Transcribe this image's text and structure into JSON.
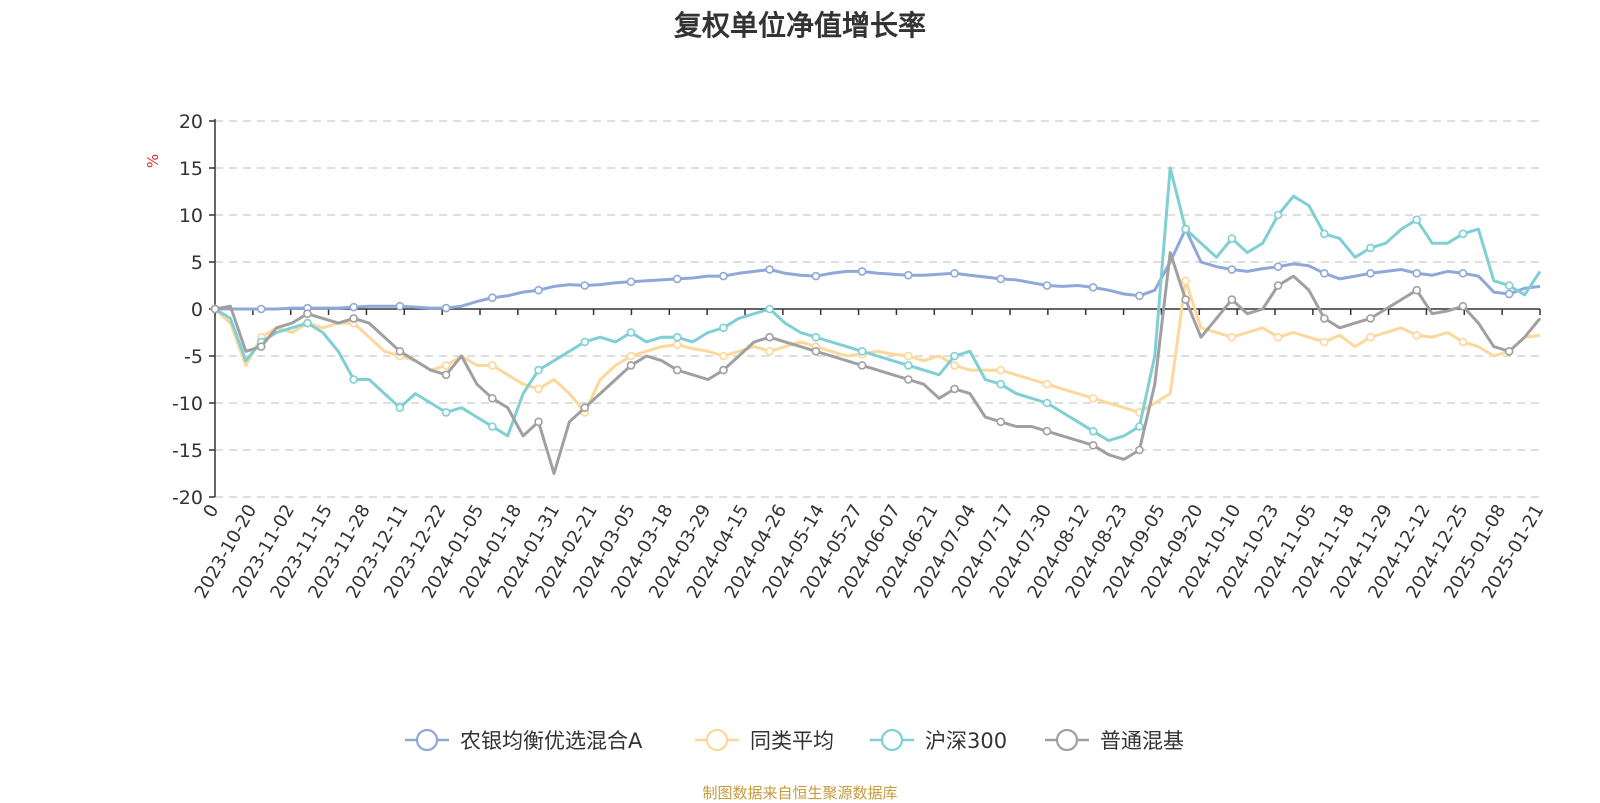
{
  "chart_data": {
    "type": "line",
    "title": "复权单位净值增长率",
    "ylabel": "%",
    "ylim": [
      -20,
      20
    ],
    "yticks": [
      20,
      15,
      10,
      5,
      0,
      -5,
      -10,
      -15,
      -20
    ],
    "grid": true,
    "legend_position": "bottom",
    "x_tick_labels": [
      "0",
      "2023-10-20",
      "2023-11-02",
      "2023-11-15",
      "2023-11-28",
      "2023-12-11",
      "2023-12-22",
      "2024-01-05",
      "2024-01-18",
      "2024-01-31",
      "2024-02-21",
      "2024-03-05",
      "2024-03-18",
      "2024-03-29",
      "2024-04-15",
      "2024-04-26",
      "2024-05-14",
      "2024-05-27",
      "2024-06-07",
      "2024-06-21",
      "2024-07-04",
      "2024-07-17",
      "2024-07-30",
      "2024-08-12",
      "2024-08-23",
      "2024-09-05",
      "2024-09-20",
      "2024-10-10",
      "2024-10-23",
      "2024-11-05",
      "2024-11-18",
      "2024-11-29",
      "2024-12-12",
      "2024-12-25",
      "2025-01-08",
      "2025-01-21"
    ],
    "series": [
      {
        "name": "农银均衡优选混合A",
        "color": "#8fa8d8",
        "values": [
          0,
          0,
          0,
          0,
          0,
          0.1,
          0.1,
          0.1,
          0.1,
          0.2,
          0.3,
          0.3,
          0.3,
          0.2,
          0.1,
          0.1,
          0.3,
          0.8,
          1.2,
          1.4,
          1.8,
          2.0,
          2.4,
          2.6,
          2.5,
          2.6,
          2.8,
          2.9,
          3.0,
          3.1,
          3.2,
          3.3,
          3.5,
          3.5,
          3.8,
          4.0,
          4.2,
          3.8,
          3.6,
          3.5,
          3.8,
          4.0,
          4.0,
          3.8,
          3.7,
          3.6,
          3.6,
          3.7,
          3.8,
          3.6,
          3.4,
          3.2,
          3.1,
          2.8,
          2.5,
          2.4,
          2.5,
          2.3,
          2.0,
          1.6,
          1.4,
          2.0,
          5.0,
          8.5,
          5.0,
          4.5,
          4.2,
          4.0,
          4.3,
          4.5,
          4.8,
          4.6,
          3.8,
          3.2,
          3.5,
          3.8,
          4.0,
          4.2,
          3.8,
          3.6,
          4.0,
          3.8,
          3.5,
          1.8,
          1.6,
          2.2,
          2.4
        ]
      },
      {
        "name": "同类平均",
        "color": "#fdd89a",
        "values": [
          0,
          -1.5,
          -6.0,
          -3.0,
          -2.0,
          -2.5,
          -1.5,
          -2.0,
          -1.5,
          -1.5,
          -3.0,
          -4.5,
          -5.0,
          -5.5,
          -6.5,
          -6.0,
          -5.0,
          -6.0,
          -6.0,
          -7.0,
          -8.0,
          -8.5,
          -7.5,
          -9.0,
          -11.0,
          -7.5,
          -6.0,
          -5.0,
          -4.5,
          -4.0,
          -3.8,
          -4.2,
          -4.5,
          -5.0,
          -4.5,
          -4.0,
          -4.5,
          -4.0,
          -3.5,
          -4.0,
          -4.5,
          -5.0,
          -4.8,
          -4.5,
          -4.8,
          -5.0,
          -5.5,
          -5.0,
          -6.0,
          -6.5,
          -6.5,
          -6.5,
          -7.0,
          -7.5,
          -8.0,
          -8.5,
          -9.0,
          -9.5,
          -10.0,
          -10.5,
          -11.0,
          -10.0,
          -9.0,
          3.0,
          -2.0,
          -2.5,
          -3.0,
          -2.5,
          -2.0,
          -3.0,
          -2.5,
          -3.0,
          -3.5,
          -2.8,
          -4.0,
          -3.0,
          -2.5,
          -2.0,
          -2.8,
          -3.0,
          -2.5,
          -3.5,
          -4.0,
          -5.0,
          -4.5,
          -3.0,
          -2.8
        ]
      },
      {
        "name": "沪深300",
        "color": "#7fcfd4",
        "values": [
          0,
          -1.0,
          -5.5,
          -3.5,
          -2.5,
          -2.0,
          -1.5,
          -2.5,
          -4.5,
          -7.5,
          -7.5,
          -9.0,
          -10.5,
          -9.0,
          -10.0,
          -11.0,
          -10.5,
          -11.5,
          -12.5,
          -13.5,
          -9.0,
          -6.5,
          -5.5,
          -4.5,
          -3.5,
          -3.0,
          -3.5,
          -2.5,
          -3.5,
          -3.0,
          -3.0,
          -3.5,
          -2.5,
          -2.0,
          -1.0,
          -0.5,
          0,
          -1.5,
          -2.5,
          -3.0,
          -3.5,
          -4.0,
          -4.5,
          -5.0,
          -5.5,
          -6.0,
          -6.5,
          -7.0,
          -5.0,
          -4.5,
          -7.5,
          -8.0,
          -9.0,
          -9.5,
          -10.0,
          -11.0,
          -12.0,
          -13.0,
          -14.0,
          -13.5,
          -12.5,
          -5.0,
          15.0,
          8.5,
          7.0,
          5.5,
          7.5,
          6.0,
          7.0,
          10.0,
          12.0,
          11.0,
          8.0,
          7.5,
          5.5,
          6.5,
          7.0,
          8.5,
          9.5,
          7.0,
          7.0,
          8.0,
          8.5,
          3.0,
          2.5,
          1.5,
          4.0
        ]
      },
      {
        "name": "普通混基",
        "color": "#a0a0a0",
        "values": [
          0,
          0.3,
          -4.5,
          -4.0,
          -2.0,
          -1.5,
          -0.5,
          -1.0,
          -1.5,
          -1.0,
          -1.5,
          -3.0,
          -4.5,
          -5.5,
          -6.5,
          -7.0,
          -5.0,
          -8.0,
          -9.5,
          -10.5,
          -13.5,
          -12.0,
          -17.5,
          -12.0,
          -10.5,
          -9.0,
          -7.5,
          -6.0,
          -5.0,
          -5.5,
          -6.5,
          -7.0,
          -7.5,
          -6.5,
          -5.0,
          -3.5,
          -3.0,
          -3.5,
          -4.0,
          -4.5,
          -5.0,
          -5.5,
          -6.0,
          -6.5,
          -7.0,
          -7.5,
          -8.0,
          -9.5,
          -8.5,
          -9.0,
          -11.5,
          -12.0,
          -12.5,
          -12.5,
          -13.0,
          -13.5,
          -14.0,
          -14.5,
          -15.5,
          -16.0,
          -15.0,
          -8.0,
          6.0,
          1.0,
          -3.0,
          -1.0,
          1.0,
          -0.5,
          0,
          2.5,
          3.5,
          2.0,
          -1.0,
          -2.0,
          -1.5,
          -1.0,
          0,
          1.0,
          2.0,
          -0.5,
          -0.2,
          0.3,
          -1.5,
          -4.0,
          -4.5,
          -3.0,
          -1.0
        ]
      }
    ]
  },
  "source_note": "制图数据来自恒生聚源数据库"
}
